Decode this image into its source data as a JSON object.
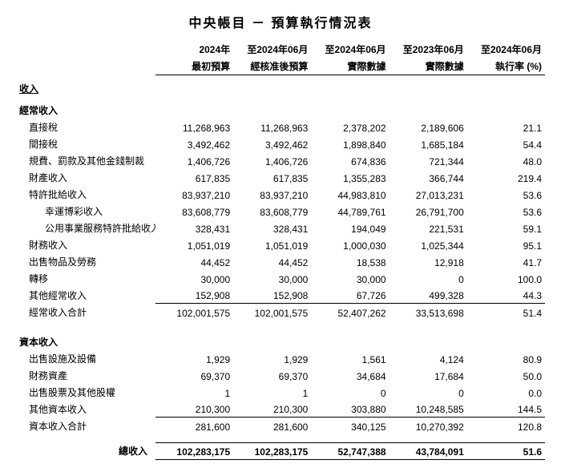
{
  "title": "中央帳目 － 預算執行情況表",
  "headers": {
    "h1": [
      "2024年",
      "至2024年06月",
      "至2024年06月",
      "至2023年06月",
      "至2024年06月"
    ],
    "h2": [
      "最初預算",
      "經核准後預算",
      "實際數據",
      "實際數據",
      "執行率 (%)"
    ]
  },
  "sections": [
    {
      "title": "收入",
      "groups": [
        {
          "title": "經常收入",
          "rows": [
            {
              "label": "直接稅",
              "v": [
                "11,268,963",
                "11,268,963",
                "2,378,202",
                "2,189,606",
                "21.1"
              ]
            },
            {
              "label": "間接稅",
              "v": [
                "3,492,462",
                "3,492,462",
                "1,898,840",
                "1,685,184",
                "54.4"
              ]
            },
            {
              "label": "規費、罰款及其他金錢制裁",
              "v": [
                "1,406,726",
                "1,406,726",
                "674,836",
                "721,344",
                "48.0"
              ]
            },
            {
              "label": "財產收入",
              "v": [
                "617,835",
                "617,835",
                "1,355,283",
                "366,744",
                "219.4"
              ]
            },
            {
              "label": "特許批給收入",
              "v": [
                "83,937,210",
                "83,937,210",
                "44,983,810",
                "27,013,231",
                "53.6"
              ]
            },
            {
              "label": "幸運博彩收入",
              "indent": 2,
              "v": [
                "83,608,779",
                "83,608,779",
                "44,789,761",
                "26,791,700",
                "53.6"
              ]
            },
            {
              "label": "公用事業服務特許批給收入",
              "indent": 2,
              "v": [
                "328,431",
                "328,431",
                "194,049",
                "221,531",
                "59.1"
              ]
            },
            {
              "label": "財務收入",
              "v": [
                "1,051,019",
                "1,051,019",
                "1,000,030",
                "1,025,344",
                "95.1"
              ]
            },
            {
              "label": "出售物品及勞務",
              "v": [
                "44,452",
                "44,452",
                "18,538",
                "12,918",
                "41.7"
              ]
            },
            {
              "label": "轉移",
              "v": [
                "30,000",
                "30,000",
                "30,000",
                "0",
                "100.0"
              ]
            },
            {
              "label": "其他經常收入",
              "v": [
                "152,908",
                "152,908",
                "67,726",
                "499,328",
                "44.3"
              ]
            }
          ],
          "subtotal": {
            "label": "經常收入合計",
            "v": [
              "102,001,575",
              "102,001,575",
              "52,407,262",
              "33,513,698",
              "51.4"
            ]
          }
        },
        {
          "title": "資本收入",
          "rows": [
            {
              "label": "出售設施及設備",
              "v": [
                "1,929",
                "1,929",
                "1,561",
                "4,124",
                "80.9"
              ]
            },
            {
              "label": "財務資產",
              "v": [
                "69,370",
                "69,370",
                "34,684",
                "17,684",
                "50.0"
              ]
            },
            {
              "label": "出售股票及其他股權",
              "v": [
                "1",
                "1",
                "0",
                "0",
                "0.0"
              ]
            },
            {
              "label": "其他資本收入",
              "v": [
                "210,300",
                "210,300",
                "303,880",
                "10,248,585",
                "144.5"
              ]
            }
          ],
          "subtotal": {
            "label": "資本收入合計",
            "v": [
              "281,600",
              "281,600",
              "340,125",
              "10,270,392",
              "120.8"
            ]
          }
        }
      ],
      "grandtotal": {
        "label": "總收入",
        "v": [
          "102,283,175",
          "102,283,175",
          "52,747,388",
          "43,784,091",
          "51.6"
        ]
      }
    }
  ]
}
